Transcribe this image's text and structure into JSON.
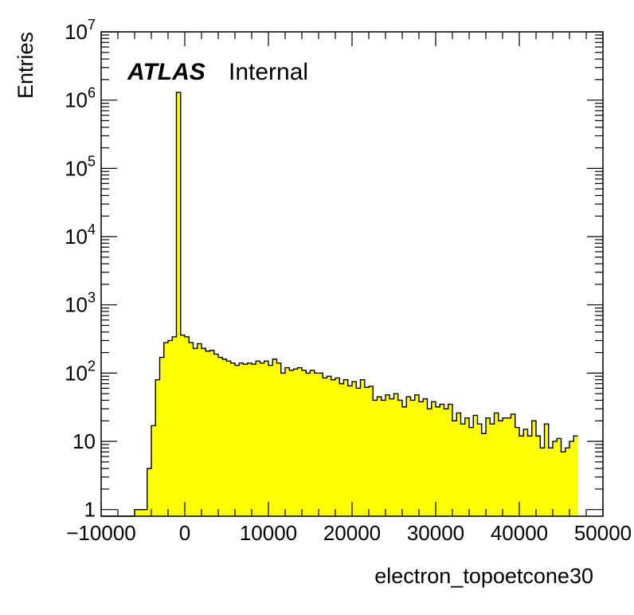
{
  "chart_data": {
    "type": "bar",
    "histogram": true,
    "xlabel": "electron_topoetcone30",
    "ylabel": "Entries",
    "xlim": [
      -10000,
      50000
    ],
    "ylim": [
      0.8,
      10000000
    ],
    "log_y": true,
    "grid": false,
    "fill_color": "#ffff00",
    "line_color": "#000000",
    "x_tick_labels": [
      "−10000",
      "0",
      "10000",
      "20000",
      "30000",
      "40000",
      "50000"
    ],
    "x_ticks": [
      -10000,
      0,
      10000,
      20000,
      30000,
      40000,
      50000
    ],
    "y_tick_labels": [
      {
        "value": 1,
        "base": "1",
        "exp": ""
      },
      {
        "value": 10,
        "base": "10",
        "exp": ""
      },
      {
        "value": 100,
        "base": "10",
        "exp": "2"
      },
      {
        "value": 1000,
        "base": "10",
        "exp": "3"
      },
      {
        "value": 10000,
        "base": "10",
        "exp": "4"
      },
      {
        "value": 100000,
        "base": "10",
        "exp": "5"
      },
      {
        "value": 1000000,
        "base": "10",
        "exp": "6"
      },
      {
        "value": 10000000,
        "base": "10",
        "exp": "7"
      }
    ],
    "bin_width": 500,
    "x_start": -10000,
    "values": [
      0,
      0,
      0,
      0,
      0,
      0,
      0,
      0,
      1,
      1,
      1,
      4,
      17,
      80,
      170,
      280,
      300,
      340,
      1300000,
      360,
      340,
      280,
      230,
      270,
      230,
      210,
      215,
      190,
      170,
      160,
      150,
      140,
      130,
      140,
      135,
      140,
      135,
      150,
      140,
      150,
      130,
      160,
      140,
      100,
      120,
      110,
      115,
      120,
      110,
      100,
      110,
      100,
      100,
      85,
      90,
      80,
      85,
      70,
      80,
      65,
      75,
      60,
      80,
      62,
      64,
      40,
      45,
      40,
      48,
      42,
      50,
      40,
      32,
      45,
      40,
      48,
      38,
      42,
      30,
      38,
      32,
      35,
      30,
      35,
      20,
      26,
      18,
      22,
      16,
      24,
      18,
      13,
      22,
      18,
      26,
      20,
      22,
      22,
      25,
      16,
      12,
      15,
      12,
      20,
      12,
      8,
      18,
      8,
      10,
      11,
      7,
      8,
      10,
      12
    ],
    "annotations": {
      "label_bold": "ATLAS",
      "label_normal": "Internal"
    }
  }
}
